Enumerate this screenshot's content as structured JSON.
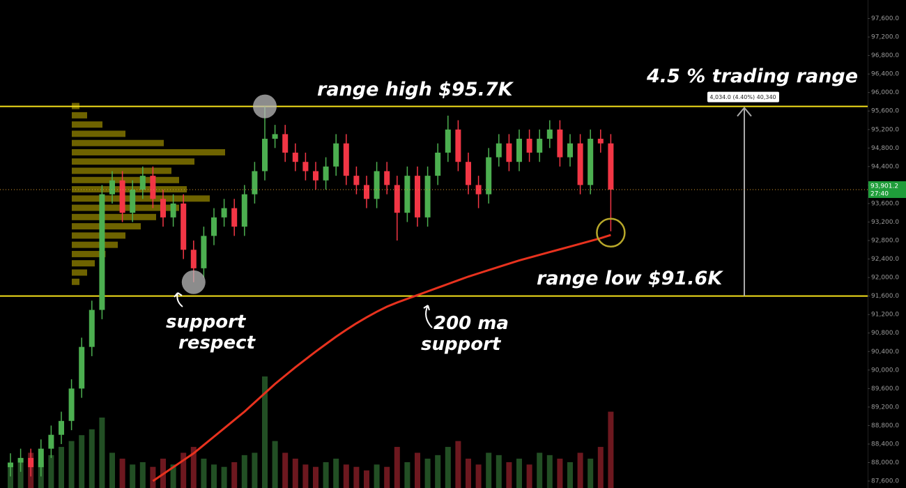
{
  "chart_data": {
    "type": "candlestick",
    "ylim": [
      87450,
      98000
    ],
    "yticks": [
      {
        "value": 97600,
        "label": "97,600.0"
      },
      {
        "value": 97200,
        "label": "97,200.0"
      },
      {
        "value": 96800,
        "label": "96,800.0"
      },
      {
        "value": 96400,
        "label": "96,400.0"
      },
      {
        "value": 96000,
        "label": "96,000.0"
      },
      {
        "value": 95600,
        "label": "95,600.0"
      },
      {
        "value": 95200,
        "label": "95,200.0"
      },
      {
        "value": 94800,
        "label": "94,800.0"
      },
      {
        "value": 94400,
        "label": "94,400.0"
      },
      {
        "value": 94000,
        "label": "94,000.0"
      },
      {
        "value": 93600,
        "label": "93,600.0"
      },
      {
        "value": 93200,
        "label": "93,200.0"
      },
      {
        "value": 92800,
        "label": "92,800.0"
      },
      {
        "value": 92400,
        "label": "92,400.0"
      },
      {
        "value": 92000,
        "label": "92,000.0"
      },
      {
        "value": 91600,
        "label": "91,600.0"
      },
      {
        "value": 91200,
        "label": "91,200.0"
      },
      {
        "value": 90800,
        "label": "90,800.0"
      },
      {
        "value": 90400,
        "label": "90,400.0"
      },
      {
        "value": 90000,
        "label": "90,000.0"
      },
      {
        "value": 89600,
        "label": "89,600.0"
      },
      {
        "value": 89200,
        "label": "89,200.0"
      },
      {
        "value": 88800,
        "label": "88,800.0"
      },
      {
        "value": 88400,
        "label": "88,400.0"
      },
      {
        "value": 88000,
        "label": "88,000.0"
      },
      {
        "value": 87600,
        "label": "87,600.0"
      }
    ],
    "up_color": "#4caf50",
    "down_color": "#f23645",
    "open": [
      87900,
      88000,
      88100,
      87900,
      88300,
      88600,
      88900,
      89600,
      90500,
      91300,
      93800,
      94100,
      93400,
      93900,
      94200,
      93700,
      93300,
      93600,
      92600,
      92200,
      92900,
      93300,
      93500,
      93100,
      93800,
      94300,
      95000,
      95100,
      94700,
      94500,
      94300,
      94100,
      94400,
      94900,
      94200,
      94000,
      93700,
      94300,
      94000,
      93400,
      94200,
      93300,
      94200,
      94700,
      95200,
      94500,
      94000,
      93800,
      94600,
      94900,
      94500,
      95000,
      94700,
      95000,
      95200,
      94600,
      94900,
      94000,
      95000,
      94900
    ],
    "high": [
      88200,
      88300,
      88300,
      88500,
      88800,
      89100,
      89800,
      90700,
      91500,
      94000,
      94300,
      94300,
      94100,
      94400,
      94400,
      93900,
      93800,
      93800,
      92800,
      93100,
      93500,
      93700,
      93700,
      94000,
      94500,
      95700,
      95300,
      95300,
      94900,
      94700,
      94500,
      94600,
      95100,
      95100,
      94400,
      94200,
      94500,
      94500,
      94200,
      94400,
      94400,
      94400,
      94900,
      95500,
      95400,
      94700,
      94200,
      94800,
      95100,
      95100,
      95200,
      95200,
      95200,
      95400,
      95400,
      95100,
      95100,
      95200,
      95200,
      95100
    ],
    "low": [
      87700,
      87800,
      87700,
      87700,
      88100,
      88400,
      88700,
      89400,
      90300,
      91100,
      93600,
      93200,
      93200,
      93700,
      93500,
      93100,
      93100,
      92400,
      91900,
      92000,
      92700,
      93100,
      92900,
      92900,
      93600,
      94100,
      94800,
      94500,
      94300,
      94100,
      93900,
      93900,
      94200,
      94000,
      93800,
      93500,
      93500,
      93800,
      92800,
      93200,
      93100,
      93100,
      94000,
      94500,
      94300,
      93800,
      93500,
      93600,
      94400,
      94300,
      94300,
      94500,
      94500,
      94800,
      94400,
      94400,
      93800,
      93800,
      94700,
      93000
    ],
    "close": [
      88000,
      88100,
      87900,
      88300,
      88600,
      88900,
      89600,
      90500,
      91300,
      93800,
      94100,
      93400,
      93900,
      94200,
      93700,
      93300,
      93600,
      92600,
      92200,
      92900,
      93300,
      93500,
      93100,
      93800,
      94300,
      95000,
      95100,
      94700,
      94500,
      94300,
      94100,
      94400,
      94900,
      94200,
      94000,
      93700,
      94300,
      94000,
      93400,
      94200,
      93300,
      94200,
      94700,
      95200,
      94500,
      94000,
      93800,
      94600,
      94900,
      94500,
      95000,
      94700,
      95000,
      95200,
      94600,
      94900,
      94000,
      95000,
      94900,
      93901.2
    ],
    "volume": [
      20,
      25,
      30,
      22,
      28,
      35,
      40,
      45,
      50,
      60,
      30,
      25,
      20,
      22,
      18,
      25,
      20,
      30,
      35,
      25,
      20,
      18,
      22,
      28,
      30,
      95,
      40,
      30,
      25,
      20,
      18,
      22,
      25,
      20,
      18,
      15,
      20,
      18,
      35,
      22,
      30,
      25,
      28,
      35,
      40,
      25,
      20,
      30,
      28,
      22,
      25,
      20,
      30,
      28,
      25,
      22,
      30,
      25,
      35,
      65
    ],
    "ma200": {
      "color": "#e8321e",
      "values": [
        null,
        null,
        null,
        null,
        null,
        null,
        null,
        null,
        null,
        null,
        null,
        null,
        null,
        null,
        87600,
        87750,
        87900,
        88050,
        88200,
        88380,
        88560,
        88740,
        88920,
        89100,
        89300,
        89500,
        89700,
        89880,
        90060,
        90230,
        90400,
        90560,
        90720,
        90870,
        91010,
        91140,
        91260,
        91370,
        91460,
        91540,
        91620,
        91700,
        91780,
        91860,
        91940,
        92020,
        92090,
        92160,
        92230,
        92300,
        92370,
        92430,
        92490,
        92550,
        92610,
        92670,
        92730,
        92790,
        92850,
        92920
      ]
    },
    "volume_profile": {
      "color": "#c8b400",
      "levels": [
        95700,
        95500,
        95300,
        95100,
        94900,
        94700,
        94500,
        94300,
        94100,
        93900,
        93700,
        93500,
        93300,
        93100,
        92900,
        92700,
        92500,
        92300,
        92100,
        91900
      ],
      "values": [
        5,
        10,
        20,
        35,
        60,
        100,
        80,
        65,
        70,
        75,
        90,
        70,
        55,
        45,
        35,
        30,
        22,
        15,
        10,
        5
      ]
    },
    "hlines": [
      {
        "value": 95700,
        "color": "#f5e11b"
      },
      {
        "value": 91600,
        "color": "#f5e11b"
      }
    ],
    "last_price": {
      "label": "93,901.2",
      "countdown": "27:40"
    },
    "measure_label": "4,034.0 (4.40%) 40,340",
    "annotations": {
      "range_high": "range high $95.7K",
      "range_low": "range low $91.6K",
      "trading_range": "4.5 % trading range",
      "support_respect": [
        "support",
        "respect"
      ],
      "ma_support": [
        "200 ma",
        "support"
      ]
    }
  }
}
